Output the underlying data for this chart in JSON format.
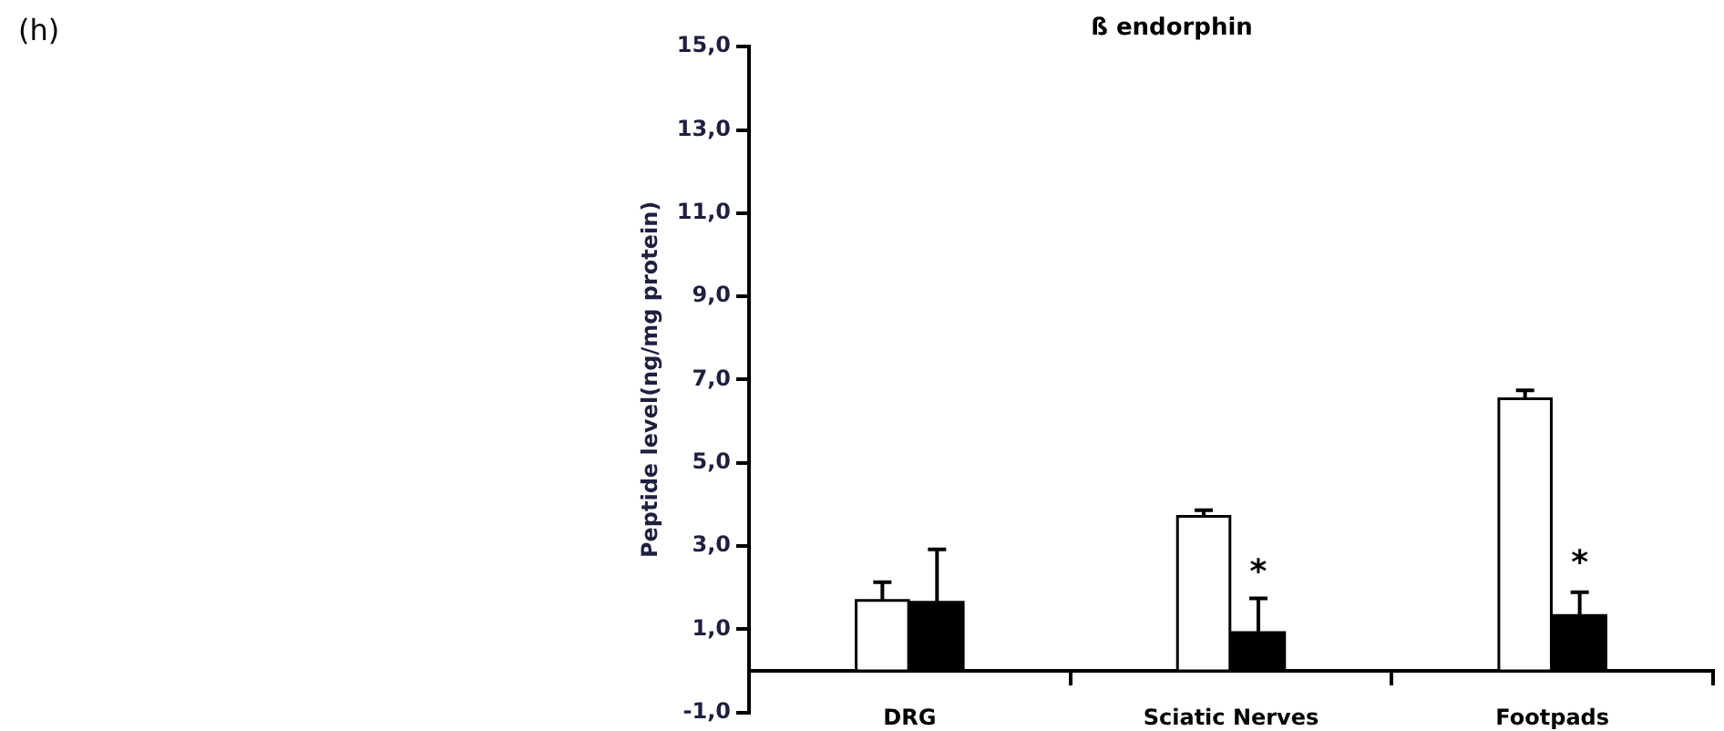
{
  "chart_data": {
    "type": "bar",
    "title": "ß endorphin",
    "ylabel": "Peptide level(ng/mg protein)",
    "categories": [
      "DRG",
      "Sciatic Nerves",
      "Footpads"
    ],
    "series": [
      {
        "color": "#ffffff",
        "values": [
          1.69,
          3.71,
          6.54
        ],
        "errors": [
          [
            1.69,
            2.13
          ],
          [
            3.71,
            3.86
          ],
          [
            6.54,
            6.74
          ]
        ]
      },
      {
        "color": "#000000",
        "values": [
          1.65,
          0.92,
          1.33
        ],
        "errors": [
          [
            1.65,
            2.92
          ],
          [
            0.92,
            1.74
          ],
          [
            1.33,
            1.89
          ]
        ]
      }
    ],
    "ylim": [
      -1,
      15
    ],
    "yticks": [
      {
        "value": -1,
        "label": "-1,0"
      },
      {
        "value": 1,
        "label": "1,0"
      },
      {
        "value": 3,
        "label": "3,0"
      },
      {
        "value": 5,
        "label": "5,0"
      },
      {
        "value": 7,
        "label": "7,0"
      },
      {
        "value": 9,
        "label": "9,0"
      },
      {
        "value": 11,
        "label": "11,0"
      },
      {
        "value": 13,
        "label": "13,0"
      },
      {
        "value": 15,
        "label": "15,0"
      }
    ],
    "grid": false,
    "legend": false,
    "annotations": [
      "(h)",
      {
        "text": "*",
        "x": "Sciatic Nerves",
        "y": 2.33
      },
      {
        "text": "*",
        "x": "Footpads",
        "y": 2.55
      }
    ]
  }
}
